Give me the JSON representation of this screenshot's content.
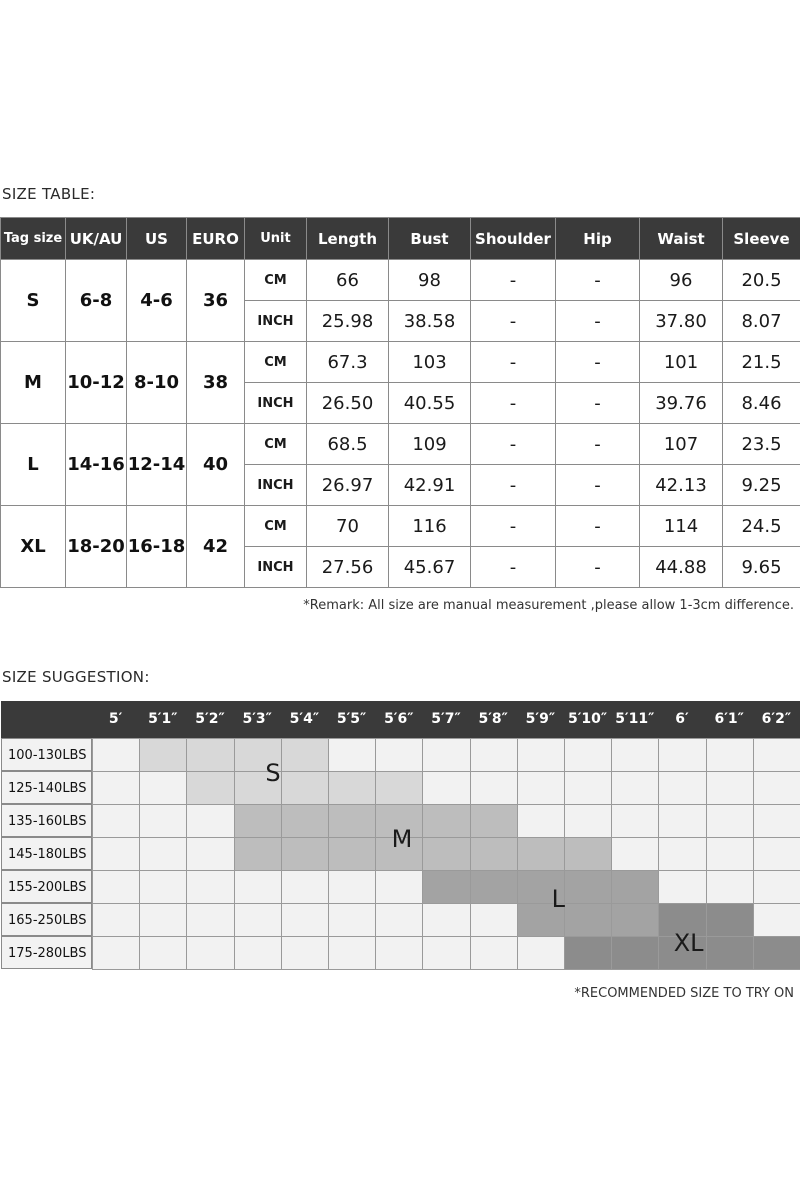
{
  "size_table": {
    "title": "SIZE TABLE:",
    "headers": [
      "Tag size",
      "UK/AU",
      "US",
      "EURO",
      "Unit",
      "Length",
      "Bust",
      "Shoulder",
      "Hip",
      "Waist",
      "Sleeve"
    ],
    "rows": [
      {
        "tag": "S",
        "uk": "6-8",
        "us": "4-6",
        "euro": "36",
        "cm": [
          "66",
          "98",
          "-",
          "-",
          "96",
          "20.5"
        ],
        "inch": [
          "25.98",
          "38.58",
          "-",
          "-",
          "37.80",
          "8.07"
        ]
      },
      {
        "tag": "M",
        "uk": "10-12",
        "us": "8-10",
        "euro": "38",
        "cm": [
          "67.3",
          "103",
          "-",
          "-",
          "101",
          "21.5"
        ],
        "inch": [
          "26.50",
          "40.55",
          "-",
          "-",
          "39.76",
          "8.46"
        ]
      },
      {
        "tag": "L",
        "uk": "14-16",
        "us": "12-14",
        "euro": "40",
        "cm": [
          "68.5",
          "109",
          "-",
          "-",
          "107",
          "23.5"
        ],
        "inch": [
          "26.97",
          "42.91",
          "-",
          "-",
          "42.13",
          "9.25"
        ]
      },
      {
        "tag": "XL",
        "uk": "18-20",
        "us": "16-18",
        "euro": "42",
        "cm": [
          "70",
          "116",
          "-",
          "-",
          "114",
          "24.5"
        ],
        "inch": [
          "27.56",
          "45.67",
          "-",
          "-",
          "44.88",
          "9.65"
        ]
      }
    ],
    "unit_cm": "CM",
    "unit_inch": "INCH",
    "remark": "*Remark: All size are manual measurement ,please allow 1-3cm difference."
  },
  "size_suggestion": {
    "title": "SIZE SUGGESTION:",
    "heights": [
      "5′",
      "5′1″",
      "5′2″",
      "5′3″",
      "5′4″",
      "5′5″",
      "5′6″",
      "5′7″",
      "5′8″",
      "5′9″",
      "5′10″",
      "5′11″",
      "6′",
      "6′1″",
      "6′2″"
    ],
    "weights": [
      "100-130LBS",
      "125-140LBS",
      "135-160LBS",
      "145-180LBS",
      "155-200LBS",
      "165-250LBS",
      "175-280LBS"
    ],
    "sizes": [
      {
        "label": "S",
        "color": "#d8d8d8"
      },
      {
        "label": "M",
        "color": "#bdbdbd"
      },
      {
        "label": "L",
        "color": "#a3a3a3"
      },
      {
        "label": "XL",
        "color": "#8c8c8c"
      }
    ],
    "matrix": [
      [
        null,
        "S",
        "S",
        "S",
        "S",
        null,
        null,
        null,
        null,
        null,
        null,
        null,
        null,
        null,
        null
      ],
      [
        null,
        null,
        "S",
        "S",
        "S",
        "S",
        "S",
        null,
        null,
        null,
        null,
        null,
        null,
        null,
        null
      ],
      [
        null,
        null,
        null,
        "M",
        "M",
        "M",
        "M",
        "M",
        "M",
        null,
        null,
        null,
        null,
        null,
        null
      ],
      [
        null,
        null,
        null,
        "M",
        "M",
        "M",
        "M",
        "M",
        "M",
        "M",
        "M",
        null,
        null,
        null,
        null
      ],
      [
        null,
        null,
        null,
        null,
        null,
        null,
        null,
        "L",
        "L",
        "L",
        "L",
        "L",
        null,
        null,
        null
      ],
      [
        null,
        null,
        null,
        null,
        null,
        null,
        null,
        null,
        null,
        "L",
        "L",
        "L",
        "XL",
        "XL",
        null
      ],
      [
        null,
        null,
        null,
        null,
        null,
        null,
        null,
        null,
        null,
        null,
        "XL",
        "XL",
        "XL",
        "XL",
        "XL"
      ]
    ],
    "recommend_note": "*RECOMMENDED SIZE TO TRY ON"
  }
}
